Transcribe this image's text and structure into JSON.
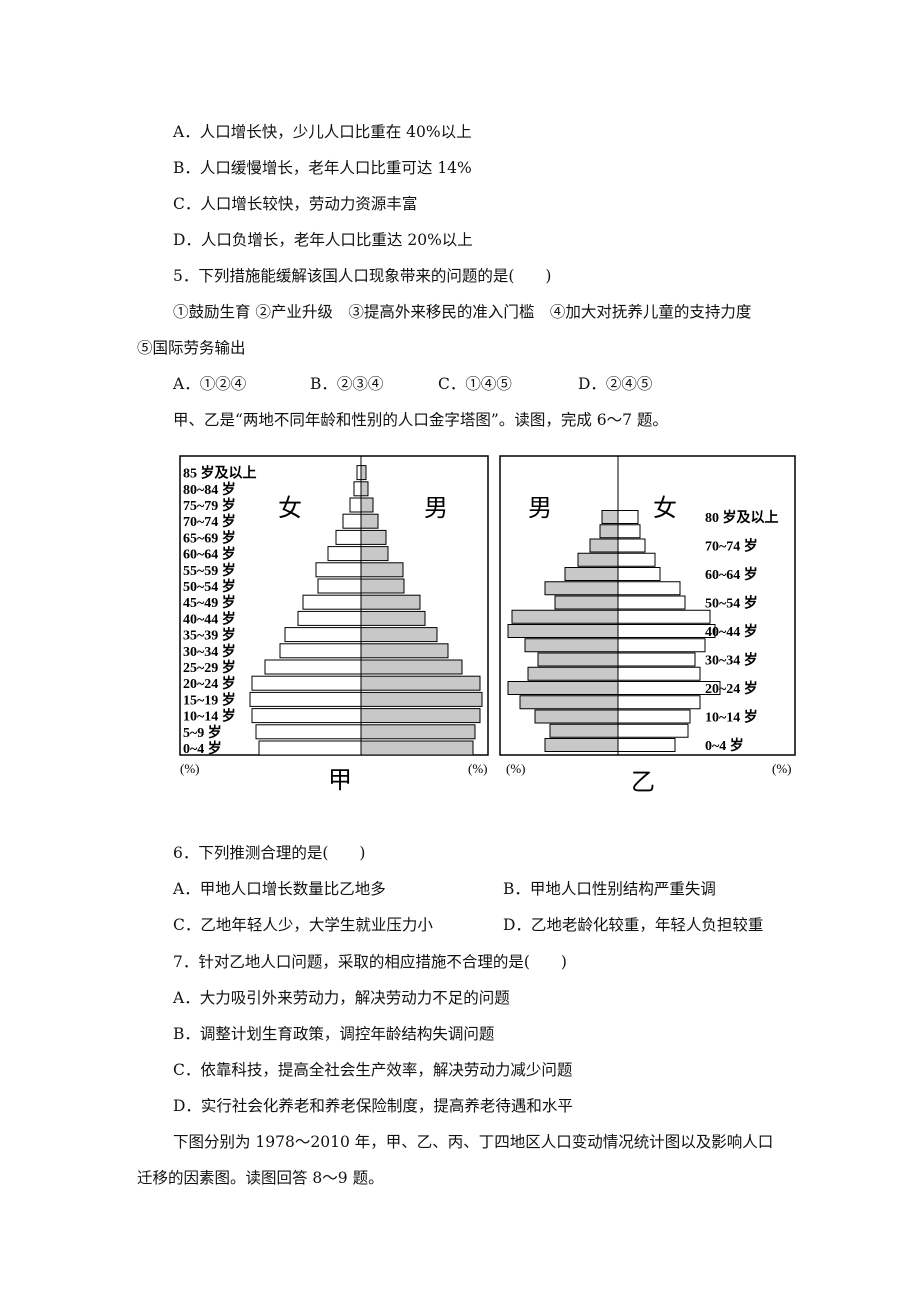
{
  "q4_options": [
    "A．人口增长快，少儿人口比重在 40%以上",
    "B．人口缓慢增长，老年人口比重可达 14%",
    "C．人口增长较快，劳动力资源丰富",
    "D．人口负增长，老年人口比重达 20%以上"
  ],
  "q5": {
    "stem": "5．下列措施能缓解该国人口现象带来的问题的是(　　)",
    "items": [
      "①鼓励生育 ②产业升级　③提高外来移民的准入门槛　④加大对抚养儿童的支持力度",
      "⑤国际劳务输出"
    ],
    "options": [
      "A．①②④",
      "B．②③④",
      "C．①④⑤",
      "D．②④⑤"
    ]
  },
  "intro_6_7": "甲、乙是“两地不同年龄和性别的人口金字塔图”。读图，完成 6～7 题。",
  "figures": [
    {
      "name": "甲",
      "left_label": "女",
      "right_label": "男",
      "unit_left": "(%)",
      "unit_right": "(%)",
      "left_color": "#ffffff",
      "right_color": "#c8c8c8",
      "xlim": [
        0,
        12.5
      ],
      "categories": [
        "0~4 岁",
        "5~9 岁",
        "10~14 岁",
        "15~19 岁",
        "20~24 岁",
        "25~29 岁",
        "30~34 岁",
        "35~39 岁",
        "40~44 岁",
        "45~49 岁",
        "50~54 岁",
        "55~59 岁",
        "60~64 岁",
        "65~69 岁",
        "70~74 岁",
        "75~79 岁",
        "80~84 岁",
        "85 岁及以上"
      ],
      "left_values": [
        10.2,
        10.5,
        10.9,
        11.1,
        10.9,
        9.6,
        8.1,
        7.6,
        6.3,
        5.8,
        4.3,
        4.5,
        3.3,
        2.5,
        1.8,
        1.1,
        0.7,
        0.4
      ],
      "right_values": [
        11.2,
        11.4,
        11.9,
        12.1,
        11.9,
        10.1,
        8.7,
        7.6,
        6.4,
        5.9,
        4.3,
        4.2,
        2.7,
        2.5,
        1.7,
        1.2,
        0.7,
        0.5
      ]
    },
    {
      "name": "乙",
      "left_label": "男",
      "right_label": "女",
      "unit_left": "(%)",
      "unit_right": "(%)",
      "left_color": "#c8c8c8",
      "right_color": "#ffffff",
      "xlim": [
        0,
        12.5
      ],
      "categories": [
        "0~4 岁",
        null,
        "10~14 岁",
        null,
        "20~24 岁",
        null,
        "30~34 岁",
        null,
        "40~44 岁",
        null,
        "50~54 岁",
        null,
        "60~64 岁",
        null,
        "70~74 岁",
        null,
        "80 岁及以上"
      ],
      "left_values": [
        7.3,
        6.8,
        8.3,
        9.8,
        11.0,
        9.0,
        8.0,
        9.3,
        11.0,
        10.6,
        6.3,
        7.3,
        5.3,
        4.0,
        2.8,
        1.8,
        1.6
      ],
      "right_values": [
        5.7,
        7.0,
        7.2,
        8.2,
        10.2,
        8.2,
        7.7,
        8.7,
        9.7,
        9.2,
        6.7,
        6.2,
        4.2,
        3.7,
        2.7,
        2.2,
        2.0
      ]
    }
  ],
  "q6": {
    "stem": "6．下列推测合理的是(　　)",
    "options": [
      "A．甲地人口增长数量比乙地多",
      "B．甲地人口性别结构严重失调",
      "C．乙地年轻人少，大学生就业压力小",
      "D．乙地老龄化较重，年轻人负担较重"
    ]
  },
  "q7": {
    "stem": "7．针对乙地人口问题，采取的相应措施不合理的是(　　)",
    "options": [
      "A．大力吸引外来劳动力，解决劳动力不足的问题",
      "B．调整计划生育政策，调控年龄结构失调问题",
      "C．依靠科技，提高全社会生产效率，解决劳动力减少问题",
      "D．实行社会化养老和养老保险制度，提高养老待遇和水平"
    ]
  },
  "intro_8_9": [
    "下图分别为 1978～2010 年，甲、乙、丙、丁四地区人口变动情况统计图以及影响人口",
    "迁移的因素图。读图回答 8～9 题。"
  ]
}
